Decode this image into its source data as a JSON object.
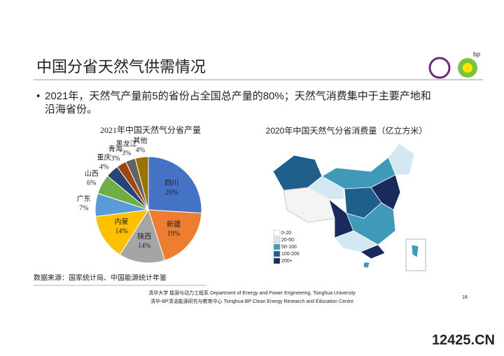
{
  "header": {
    "title": "中国分省天然气供需情况"
  },
  "bullet": [
    "2021年，天然气产量前5的省份占全国总产量的80%；天然气消费集中于主要产地和",
    "沿海省份。"
  ],
  "chart_data": {
    "type": "pie",
    "title": "2021年中国天然气分省产量",
    "categories": [
      "四川",
      "新疆",
      "陕西",
      "内蒙",
      "广东",
      "山西",
      "重庆",
      "青海",
      "黑龙江",
      "其他"
    ],
    "values": [
      26,
      19,
      14,
      14,
      7,
      6,
      4,
      3,
      3,
      4
    ],
    "value_labels": [
      "26%",
      "19%",
      "14%",
      "14%",
      "7%",
      "6%",
      "4%",
      "3%",
      "3%",
      "4%"
    ],
    "colors": [
      "#4472c4",
      "#ed7d31",
      "#a5a5a5",
      "#ffc000",
      "#5b9bd5",
      "#70ad47",
      "#264478",
      "#9e480e",
      "#636363",
      "#997300"
    ]
  },
  "map": {
    "title": "2020年中国天然气分省消费量（亿立方米）",
    "legend": [
      {
        "label": "0-20",
        "color": "#ffffff"
      },
      {
        "label": "20-50",
        "color": "#d3e8f3"
      },
      {
        "label": "50-100",
        "color": "#3e9ab8"
      },
      {
        "label": "100-200",
        "color": "#1f5f8b"
      },
      {
        "label": "200+",
        "color": "#1b2a5c"
      }
    ]
  },
  "source": "数据来源：国家统计局、中国能源统计年鉴",
  "footer": [
    "清华大学 能源与动力工程系 Department of Energy and Power Engineering, Tsinghua University",
    "清华-BP清洁能源研究与教育中心 Tsinghua-BP Clean Energy Research and Education Centre"
  ],
  "page_number": "18",
  "watermark": "12425.CN"
}
